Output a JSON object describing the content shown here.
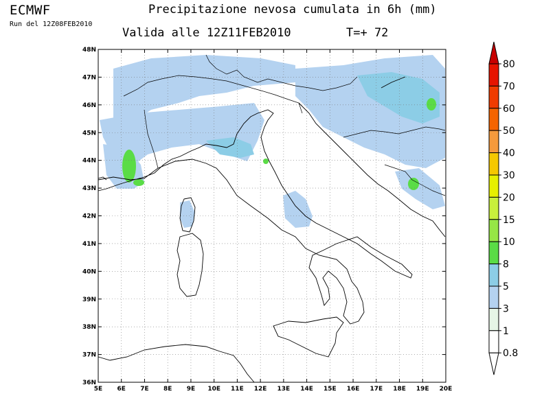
{
  "header": {
    "brand": "ECMWF",
    "run": "Run del 12Z08FEB2010",
    "title": "Precipitazione nevosa cumulata in 6h (mm)",
    "valid": "Valida alle 12Z11FEB2010",
    "step": "T=+ 72"
  },
  "map": {
    "lon_ticks": [
      "5E",
      "6E",
      "7E",
      "8E",
      "9E",
      "10E",
      "11E",
      "12E",
      "13E",
      "14E",
      "15E",
      "16E",
      "17E",
      "18E",
      "19E",
      "20E"
    ],
    "lat_ticks": [
      "48N",
      "47N",
      "46N",
      "45N",
      "44N",
      "43N",
      "42N",
      "41N",
      "40N",
      "39N",
      "38N",
      "37N",
      "36N"
    ],
    "lon_range": [
      5,
      20
    ],
    "lat_range": [
      36,
      48
    ],
    "grid": "dotted"
  },
  "colorbar": {
    "labels": [
      "80",
      "70",
      "60",
      "50",
      "40",
      "30",
      "20",
      "15",
      "10",
      "8",
      "5",
      "3",
      "1",
      "0.8"
    ],
    "colors": [
      "#c80000",
      "#e61400",
      "#f03c00",
      "#f56400",
      "#f59a3c",
      "#f5c800",
      "#e6f000",
      "#c8f03c",
      "#96e646",
      "#5adc46",
      "#8ccde6",
      "#b4d2f0",
      "#e6f5e6",
      "#ffffff"
    ]
  }
}
